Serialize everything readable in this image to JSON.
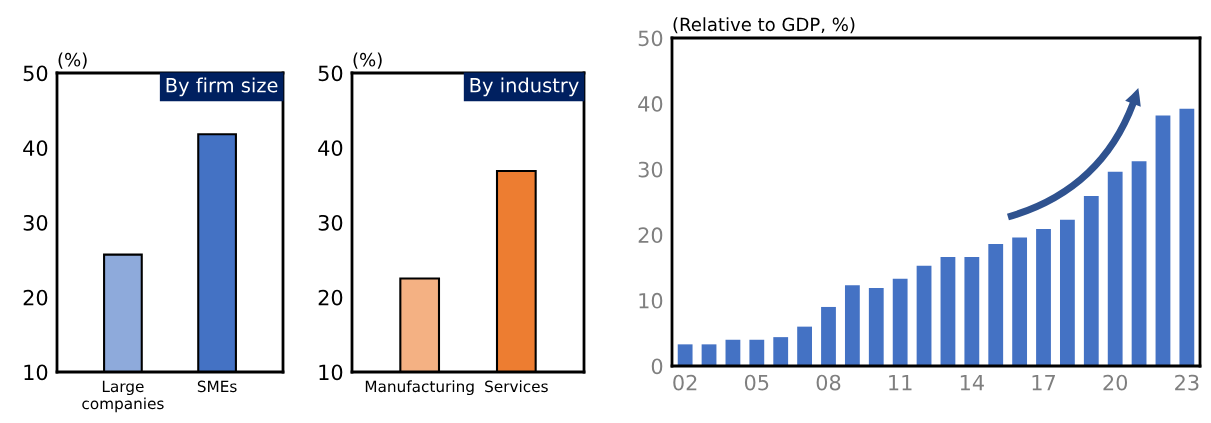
{
  "chart_data": [
    {
      "type": "bar",
      "title": "By firm size",
      "ylabel": "(%)",
      "categories": [
        "Large\ncompanies",
        "SMEs"
      ],
      "values": [
        25.7,
        41.8
      ],
      "colors": [
        "#8eaadb",
        "#4472c4"
      ],
      "ylim": [
        10,
        50
      ],
      "yticks": [
        10,
        20,
        30,
        40,
        50
      ],
      "grid": false,
      "legend": false
    },
    {
      "type": "bar",
      "title": "By industry",
      "ylabel": "(%)",
      "categories": [
        "Manufacturing",
        "Services"
      ],
      "values": [
        22.5,
        36.9
      ],
      "colors": [
        "#f4b183",
        "#ed7d31"
      ],
      "ylim": [
        10,
        50
      ],
      "yticks": [
        10,
        20,
        30,
        40,
        50
      ],
      "grid": false,
      "legend": false
    },
    {
      "type": "bar",
      "ylabel": "(Relative to GDP, %)",
      "categories": [
        "02",
        null,
        null,
        "05",
        null,
        null,
        "08",
        null,
        null,
        "11",
        null,
        null,
        "14",
        null,
        null,
        "17",
        null,
        null,
        "20",
        null,
        null,
        "23"
      ],
      "values": [
        3.3,
        3.3,
        4.0,
        4.0,
        4.4,
        6.0,
        9.0,
        12.3,
        11.9,
        13.3,
        15.3,
        16.6,
        16.6,
        18.6,
        19.6,
        20.9,
        22.3,
        25.9,
        29.6,
        31.2,
        38.2,
        39.2
      ],
      "color": "#4472c4",
      "ylim": [
        0,
        50
      ],
      "yticks": [
        0,
        10,
        20,
        30,
        40,
        50
      ],
      "grid": false,
      "legend": false
    }
  ]
}
